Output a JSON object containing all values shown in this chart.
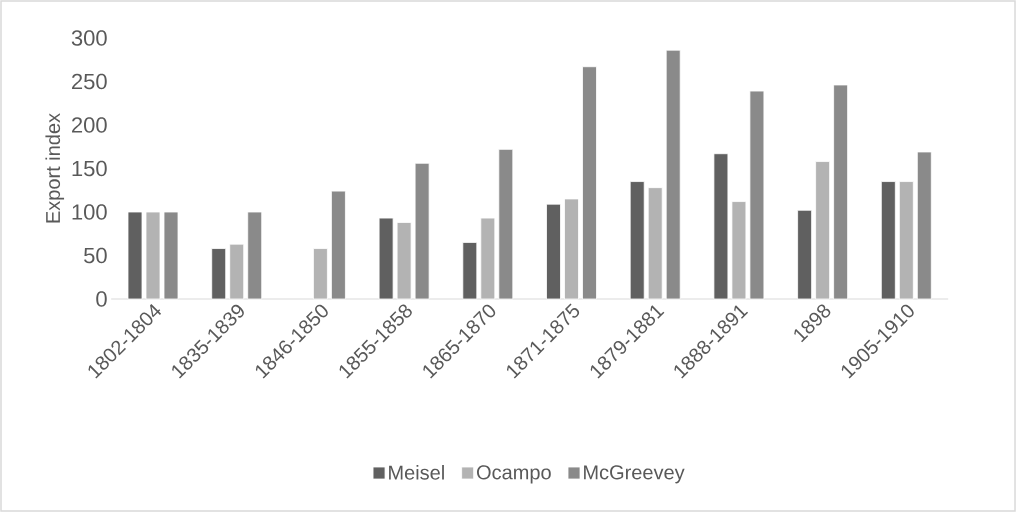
{
  "chart_data": {
    "type": "bar",
    "ylabel": "Export index",
    "categories": [
      "1802-1804",
      "1835-1839",
      "1846-1850",
      "1855-1858",
      "1865-1870",
      "1871-1875",
      "1879-1881",
      "1888-1891",
      "1898",
      "1905-1910"
    ],
    "series": [
      {
        "name": "Meisel",
        "color": "#606060",
        "values": [
          100,
          58,
          null,
          93,
          65,
          109,
          135,
          167,
          102,
          135
        ]
      },
      {
        "name": "Ocampo",
        "color": "#b3b3b3",
        "values": [
          100,
          63,
          58,
          88,
          93,
          115,
          128,
          112,
          158,
          135
        ]
      },
      {
        "name": "McGreevey",
        "color": "#8a8a8a",
        "values": [
          100,
          100,
          124,
          156,
          172,
          267,
          286,
          239,
          246,
          169
        ]
      }
    ],
    "ylim": [
      0,
      300
    ],
    "yticks": [
      0,
      50,
      100,
      150,
      200,
      250,
      300
    ],
    "grid": false,
    "legend": "bottom"
  }
}
